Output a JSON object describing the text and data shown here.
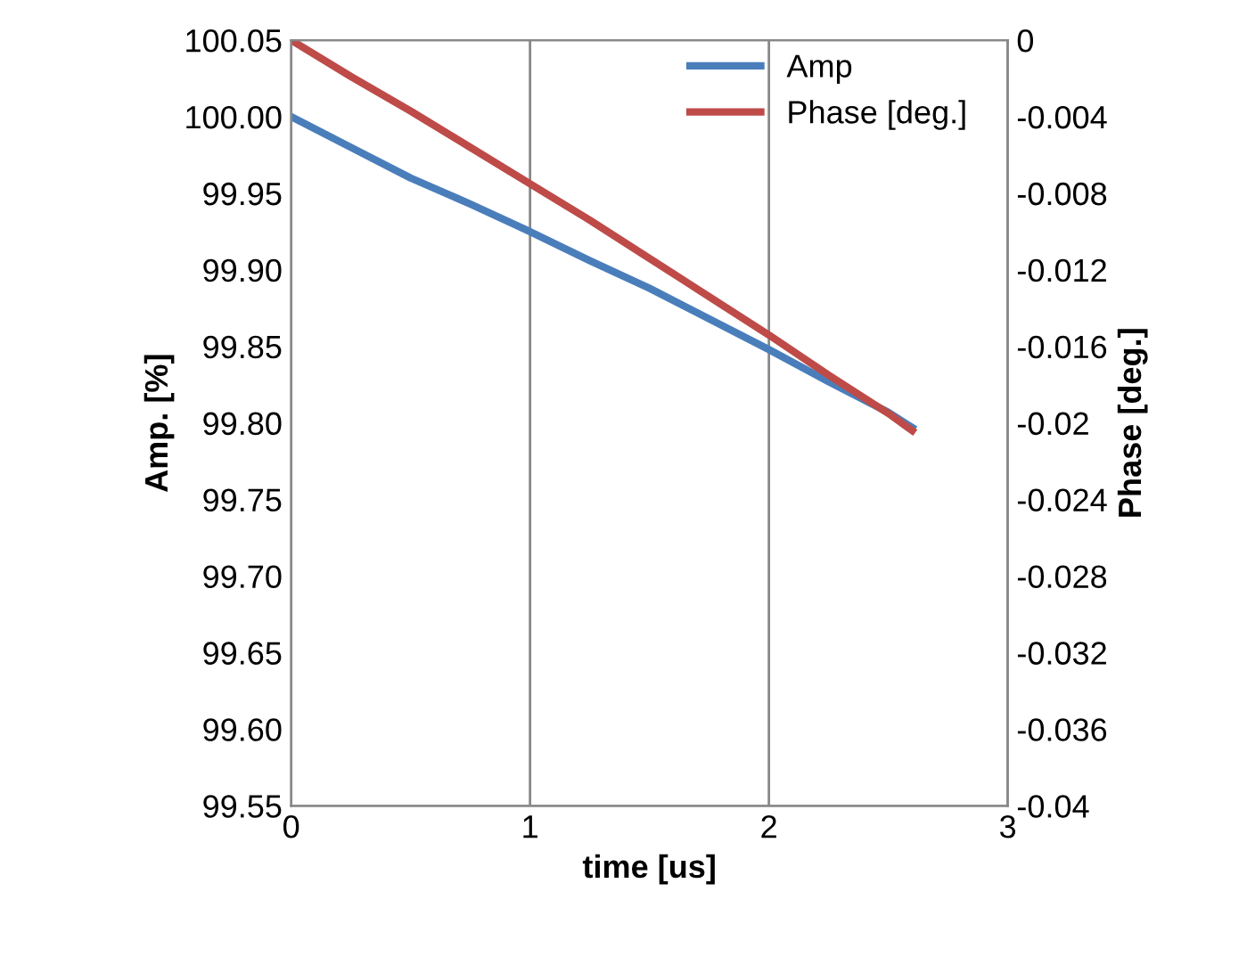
{
  "chart_data": {
    "type": "line",
    "xlabel": "time [us]",
    "ylabel": "Amp. [%]",
    "y2label": "Phase [deg.]",
    "xlim": [
      0,
      3
    ],
    "xticks": [
      0,
      1,
      2,
      3
    ],
    "ylim": [
      99.55,
      100.05
    ],
    "yticks": [
      {
        "value": 99.55,
        "label": "99.55"
      },
      {
        "value": 99.6,
        "label": "99.60"
      },
      {
        "value": 99.65,
        "label": "99.65"
      },
      {
        "value": 99.7,
        "label": "99.70"
      },
      {
        "value": 99.75,
        "label": "99.75"
      },
      {
        "value": 99.8,
        "label": "99.80"
      },
      {
        "value": 99.85,
        "label": "99.85"
      },
      {
        "value": 99.9,
        "label": "99.90"
      },
      {
        "value": 99.95,
        "label": "99.95"
      },
      {
        "value": 100.0,
        "label": "100.00"
      },
      {
        "value": 100.05,
        "label": "100.05"
      }
    ],
    "y2lim": [
      -0.04,
      0
    ],
    "y2ticks": [
      -0.04,
      -0.036,
      -0.032,
      -0.028,
      -0.024,
      -0.02,
      -0.016,
      -0.012,
      -0.008,
      -0.004,
      0
    ],
    "grid": "x",
    "legend": "top",
    "line_style": "solid",
    "marker": "none",
    "series": [
      {
        "name": "Amp",
        "color": "#4a7ebb",
        "x": [
          0,
          0.25,
          0.5,
          0.75,
          1,
          1.25,
          1.5,
          1.75,
          2,
          2.25,
          2.5,
          2.6
        ],
        "values": [
          100.0,
          99.98,
          99.96,
          99.943,
          99.925,
          99.906,
          99.888,
          99.868,
          99.848,
          99.827,
          99.807,
          99.797
        ]
      },
      {
        "name": "Phase [deg.]",
        "color": "#be4b48",
        "axis": "y2",
        "x": [
          0,
          0.25,
          0.5,
          0.75,
          1,
          1.25,
          1.5,
          1.75,
          2,
          2.25,
          2.5,
          2.6
        ],
        "values": [
          0,
          -0.0019,
          -0.0037,
          -0.0056,
          -0.0075,
          -0.0094,
          -0.0114,
          -0.0134,
          -0.0154,
          -0.0175,
          -0.0195,
          -0.0204
        ]
      }
    ]
  }
}
